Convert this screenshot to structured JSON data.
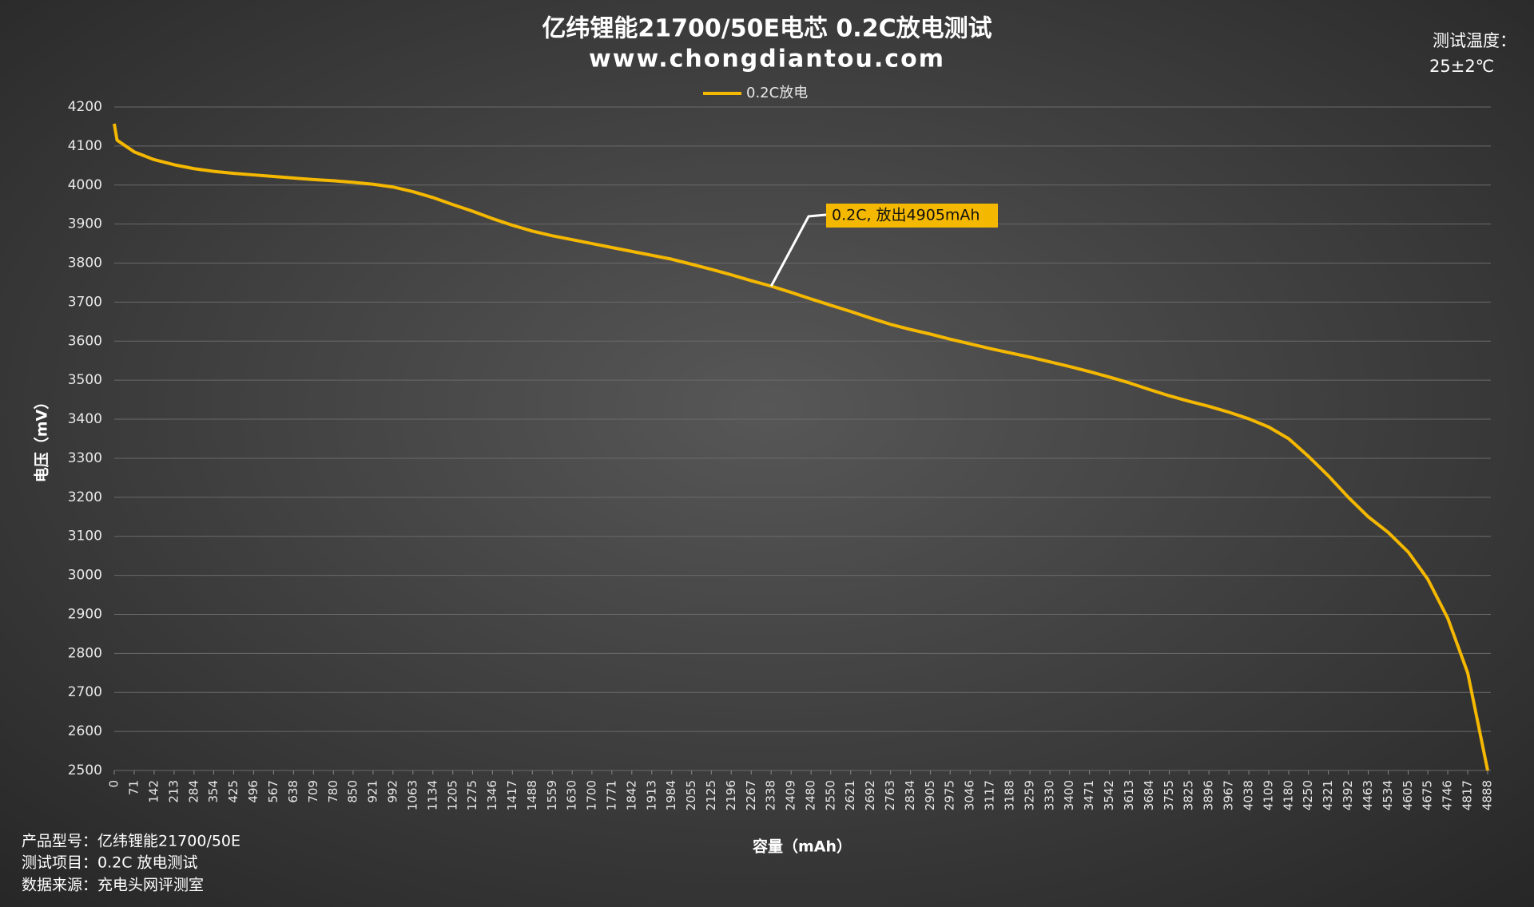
{
  "chart_data": {
    "type": "line",
    "title": "亿纬锂能21700/50E电芯 0.2C放电测试",
    "subtitle": "www.chongdiantou.com",
    "x_label": "容量（mAh）",
    "y_label": "电压（mV）",
    "temperature_label": "测试温度：",
    "temperature": "25±2℃",
    "notes": [
      "产品型号：亿纬锂能21700/50E",
      "测试项目：0.2C 放电测试",
      "数据来源：充电头网评测室"
    ],
    "annotation": "0.2C, 放出4905mAh",
    "x": [
      0,
      10,
      71,
      142,
      213,
      284,
      354,
      425,
      496,
      567,
      638,
      709,
      780,
      850,
      921,
      992,
      1063,
      1134,
      1205,
      1275,
      1346,
      1417,
      1488,
      1559,
      1630,
      1700,
      1771,
      1842,
      1913,
      1984,
      2055,
      2125,
      2196,
      2267,
      2338,
      2409,
      2480,
      2550,
      2621,
      2692,
      2763,
      2834,
      2905,
      2975,
      3046,
      3117,
      3188,
      3259,
      3330,
      3400,
      3471,
      3542,
      3613,
      3684,
      3755,
      3825,
      3896,
      3967,
      4038,
      4109,
      4180,
      4250,
      4321,
      4392,
      4463,
      4534,
      4605,
      4675,
      4746,
      4817,
      4888
    ],
    "series": [
      {
        "name": "0.2C放电",
        "color": "#f5b800",
        "values": [
          4157,
          4115,
          4085,
          4065,
          4052,
          4042,
          4035,
          4030,
          4026,
          4022,
          4018,
          4014,
          4011,
          4007,
          4002,
          3995,
          3983,
          3968,
          3950,
          3933,
          3914,
          3897,
          3882,
          3870,
          3860,
          3850,
          3840,
          3830,
          3820,
          3810,
          3797,
          3784,
          3770,
          3755,
          3741,
          3725,
          3708,
          3692,
          3676,
          3659,
          3643,
          3630,
          3618,
          3605,
          3593,
          3581,
          3570,
          3559,
          3547,
          3535,
          3522,
          3508,
          3493,
          3476,
          3460,
          3446,
          3433,
          3418,
          3401,
          3380,
          3350,
          3305,
          3255,
          3200,
          3150,
          3110,
          3060,
          2990,
          2890,
          2750,
          2500
        ]
      }
    ],
    "xlim": [
      0,
      4888
    ],
    "xticks": [
      0,
      71,
      142,
      213,
      284,
      354,
      425,
      496,
      567,
      638,
      709,
      780,
      850,
      921,
      992,
      1063,
      1134,
      1205,
      1275,
      1346,
      1417,
      1488,
      1559,
      1630,
      1700,
      1771,
      1842,
      1913,
      1984,
      2055,
      2125,
      2196,
      2267,
      2338,
      2409,
      2480,
      2550,
      2621,
      2692,
      2763,
      2834,
      2905,
      2975,
      3046,
      3117,
      3188,
      3259,
      3330,
      3400,
      3471,
      3542,
      3613,
      3684,
      3755,
      3825,
      3896,
      3967,
      4038,
      4109,
      4180,
      4250,
      4321,
      4392,
      4463,
      4534,
      4605,
      4675,
      4746,
      4817,
      4888
    ],
    "ylim": [
      2500,
      4200
    ],
    "yticks": [
      2500,
      2600,
      2700,
      2800,
      2900,
      3000,
      3100,
      3200,
      3300,
      3400,
      3500,
      3600,
      3700,
      3800,
      3900,
      4000,
      4100,
      4200
    ],
    "grid": true
  }
}
